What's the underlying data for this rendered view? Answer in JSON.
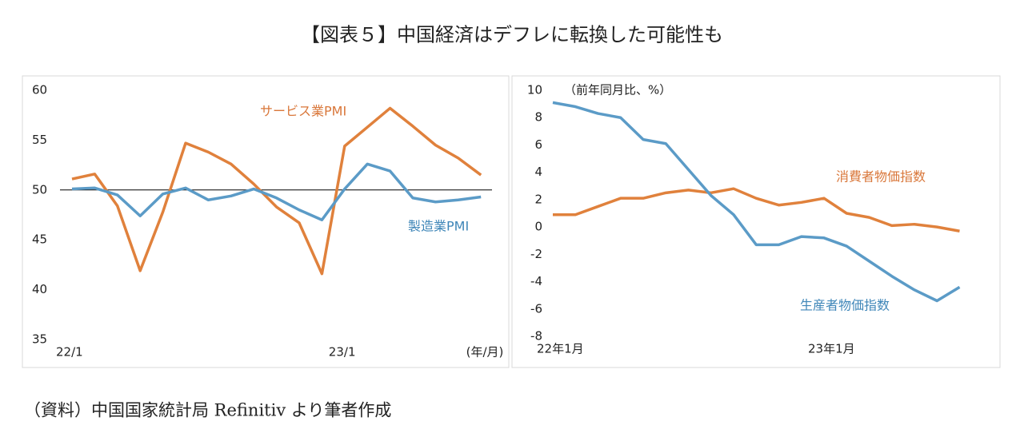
{
  "title": "【図表５】中国経済はデフレに転換した可能性も",
  "source": "（資料）中国国家統計局 Refinitiv より筆者作成",
  "chart_data": [
    {
      "type": "line",
      "categories": [
        "22/1",
        null,
        null,
        null,
        null,
        null,
        null,
        null,
        null,
        null,
        null,
        null,
        "23/1",
        null,
        null,
        null,
        null,
        null,
        null
      ],
      "x_unit": "(年/月)",
      "ylim": [
        35,
        60
      ],
      "yticks": [
        35,
        40,
        45,
        50,
        55,
        60
      ],
      "hline": 50,
      "series": [
        {
          "name": "サービス業PMI",
          "color": "#e0813c",
          "values": [
            51.1,
            51.6,
            48.4,
            41.9,
            47.8,
            54.7,
            53.8,
            52.6,
            50.6,
            48.3,
            46.7,
            41.6,
            54.4,
            56.3,
            58.2,
            56.4,
            54.5,
            53.2,
            51.5
          ]
        },
        {
          "name": "製造業PMI",
          "color": "#5b9bc7",
          "values": [
            50.1,
            50.2,
            49.5,
            47.4,
            49.6,
            50.2,
            49.0,
            49.4,
            50.1,
            49.2,
            48.0,
            47.0,
            50.1,
            52.6,
            51.9,
            49.2,
            48.8,
            49.0,
            49.3
          ]
        }
      ]
    },
    {
      "type": "line",
      "categories": [
        "22年1月",
        null,
        null,
        null,
        null,
        null,
        null,
        null,
        null,
        null,
        null,
        null,
        "23年1月",
        null,
        null,
        null,
        null,
        null,
        null
      ],
      "y_unit": "（前年同月比、%）",
      "ylim": [
        -8,
        10
      ],
      "yticks": [
        -8,
        -6,
        -4,
        -2,
        0,
        2,
        4,
        6,
        8,
        10
      ],
      "series": [
        {
          "name": "消費者物価指数",
          "color": "#e0813c",
          "values": [
            0.9,
            0.9,
            1.5,
            2.1,
            2.1,
            2.5,
            2.7,
            2.5,
            2.8,
            2.1,
            1.6,
            1.8,
            2.1,
            1.0,
            0.7,
            0.1,
            0.2,
            0.0,
            -0.3
          ]
        },
        {
          "name": "生産者物価指数",
          "color": "#5b9bc7",
          "values": [
            9.1,
            8.8,
            8.3,
            8.0,
            6.4,
            6.1,
            4.2,
            2.3,
            0.9,
            -1.3,
            -1.3,
            -0.7,
            -0.8,
            -1.4,
            -2.5,
            -3.6,
            -4.6,
            -5.4,
            -4.4
          ]
        }
      ]
    }
  ]
}
